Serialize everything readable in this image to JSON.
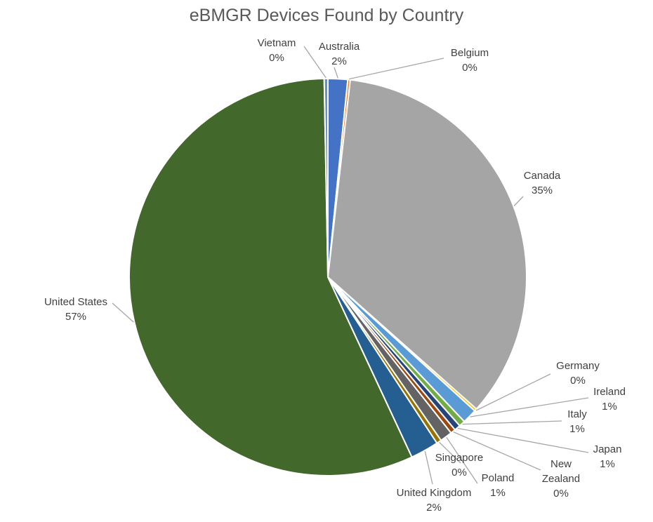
{
  "chart_data": {
    "type": "pie",
    "title": "eBMGR Devices Found by Country",
    "slices": [
      {
        "name": "Australia",
        "value": 1.6,
        "label": "2%",
        "color": "#4472c4"
      },
      {
        "name": "Belgium",
        "value": 0.2,
        "label": "0%",
        "color": "#ed7d31"
      },
      {
        "name": "Canada",
        "value": 34.8,
        "label": "35%",
        "color": "#a5a5a5"
      },
      {
        "name": "Germany",
        "value": 0.2,
        "label": "0%",
        "color": "#ffc000"
      },
      {
        "name": "Ireland",
        "value": 1.2,
        "label": "1%",
        "color": "#5b9bd5"
      },
      {
        "name": "Italy",
        "value": 0.5,
        "label": "1%",
        "color": "#70ad47"
      },
      {
        "name": "Japan",
        "value": 0.5,
        "label": "1%",
        "color": "#264478"
      },
      {
        "name": "New Zealand",
        "value": 0.4,
        "label": "0%",
        "color": "#9e480e"
      },
      {
        "name": "Poland",
        "value": 1.0,
        "label": "1%",
        "color": "#636363"
      },
      {
        "name": "Singapore",
        "value": 0.4,
        "label": "0%",
        "color": "#997300"
      },
      {
        "name": "United Kingdom",
        "value": 2.3,
        "label": "2%",
        "color": "#255e91"
      },
      {
        "name": "United States",
        "value": 56.7,
        "label": "57%",
        "color": "#43682b"
      },
      {
        "name": "Vietnam",
        "value": 0.3,
        "label": "0%",
        "color": "#698ed0"
      }
    ],
    "legend": "none",
    "data_labels": "category name and percentage, outside with leader lines"
  }
}
